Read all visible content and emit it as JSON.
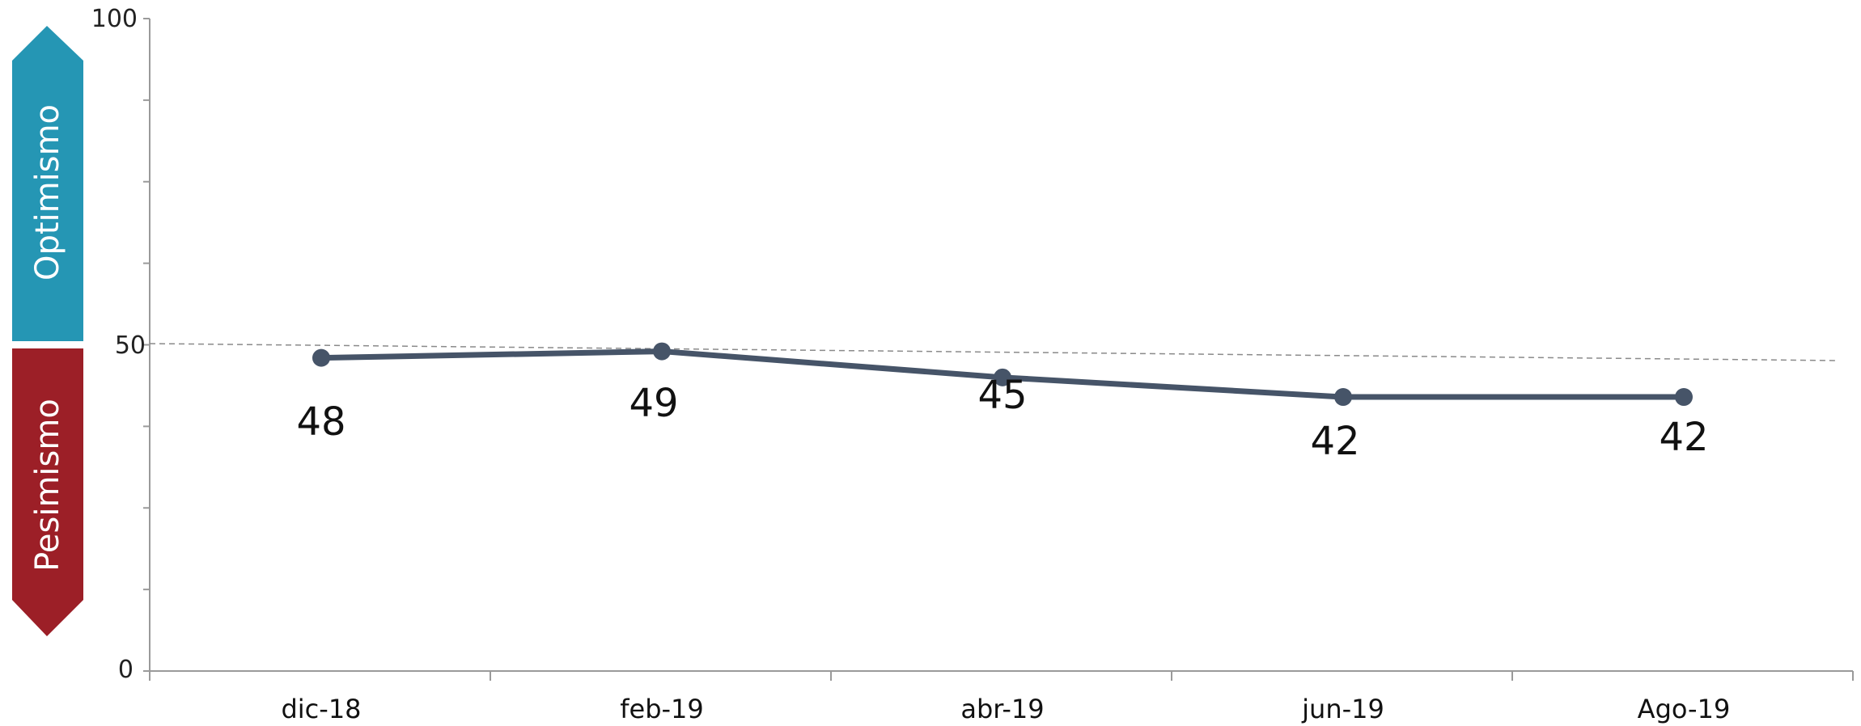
{
  "chart_data": {
    "type": "line",
    "categories": [
      "dic-18",
      "feb-19",
      "abr-19",
      "jun-19",
      "Ago-19"
    ],
    "series": [
      {
        "values": [
          48,
          49,
          45,
          42,
          42
        ]
      }
    ],
    "data_labels": [
      "48",
      "49",
      "45",
      "42",
      "42"
    ],
    "ylim": [
      0,
      100
    ],
    "y_ticks": [
      "0",
      "50",
      "100"
    ],
    "reference_line": {
      "value": 50,
      "style": "dashed"
    },
    "bands": [
      {
        "label": "Optimismo",
        "color": "#2596b4"
      },
      {
        "label": "Pesimismo",
        "color": "#9c1f27"
      }
    ],
    "colors": {
      "line": "#465468",
      "axis": "#9a9a9a",
      "reference": "#8a8a8a"
    },
    "xlabel": "",
    "ylabel": "",
    "title": "",
    "grid": false
  }
}
